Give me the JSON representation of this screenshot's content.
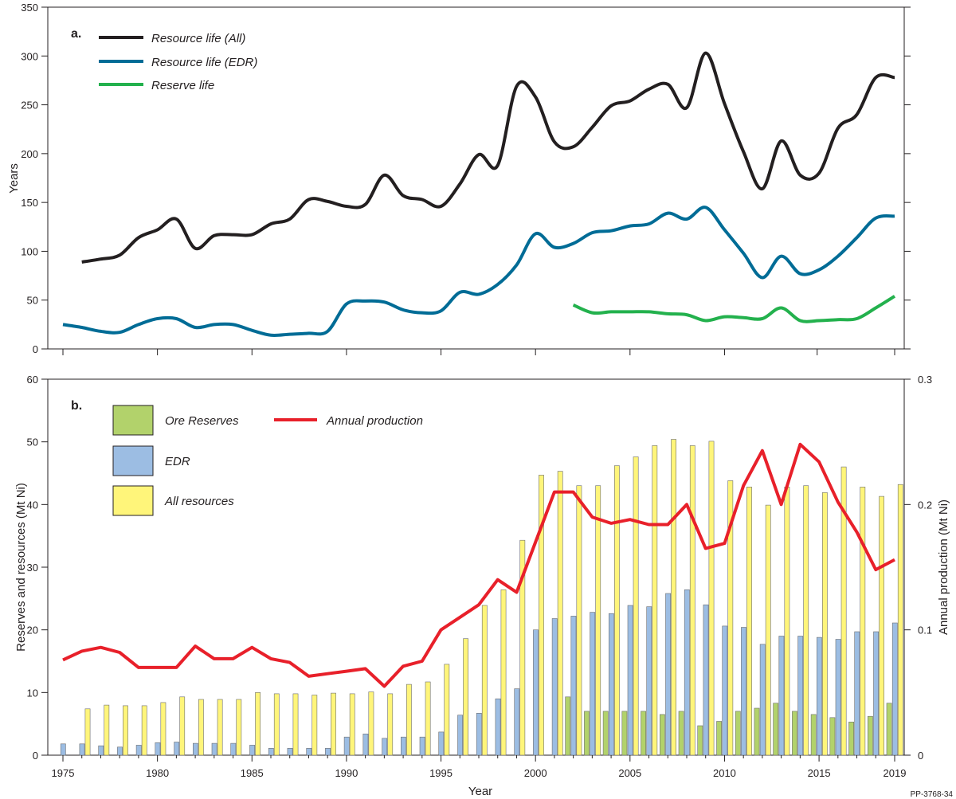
{
  "chart_data": [
    {
      "panel": "a.",
      "type": "line",
      "x": [
        1975,
        1976,
        1977,
        1978,
        1979,
        1980,
        1981,
        1982,
        1983,
        1984,
        1985,
        1986,
        1987,
        1988,
        1989,
        1990,
        1991,
        1992,
        1993,
        1994,
        1995,
        1996,
        1997,
        1998,
        1999,
        2000,
        2001,
        2002,
        2003,
        2004,
        2005,
        2006,
        2007,
        2008,
        2009,
        2010,
        2011,
        2012,
        2013,
        2014,
        2015,
        2016,
        2017,
        2018,
        2019
      ],
      "series": [
        {
          "name": "Resource life (All)",
          "color": "#231f20",
          "values": [
            null,
            89,
            92,
            96,
            114,
            122,
            133,
            103,
            116,
            117,
            117,
            128,
            133,
            153,
            151,
            146,
            148,
            178,
            157,
            153,
            146,
            169,
            199,
            188,
            269,
            258,
            212,
            207,
            227,
            249,
            254,
            266,
            271,
            247,
            303,
            251,
            202,
            164,
            213,
            178,
            180,
            226,
            240,
            278,
            278
          ]
        },
        {
          "name": "Resource life (EDR)",
          "color": "#006c96",
          "values": [
            25,
            22,
            18,
            17,
            25,
            31,
            31,
            22,
            25,
            25,
            19,
            14,
            15,
            16,
            18,
            46,
            49,
            48,
            40,
            37,
            39,
            58,
            56,
            66,
            86,
            118,
            104,
            108,
            119,
            121,
            126,
            128,
            139,
            133,
            145,
            122,
            98,
            73,
            95,
            77,
            81,
            95,
            114,
            134,
            136
          ]
        },
        {
          "name": "Reserve life",
          "color": "#23b14d",
          "values": [
            null,
            null,
            null,
            null,
            null,
            null,
            null,
            null,
            null,
            null,
            null,
            null,
            null,
            null,
            null,
            null,
            null,
            null,
            null,
            null,
            null,
            null,
            null,
            null,
            null,
            null,
            null,
            45,
            37,
            38,
            38,
            38,
            36,
            35,
            29,
            33,
            32,
            31,
            42,
            29,
            29,
            30,
            31,
            42,
            54
          ]
        }
      ],
      "ylabel": "Years",
      "ylim": [
        0,
        350
      ],
      "yticks": [
        0,
        50,
        100,
        150,
        200,
        250,
        300,
        350
      ],
      "legend": "top-left"
    },
    {
      "panel": "b.",
      "type": "bar",
      "categories": [
        1975,
        1976,
        1977,
        1978,
        1979,
        1980,
        1981,
        1982,
        1983,
        1984,
        1985,
        1986,
        1987,
        1988,
        1989,
        1990,
        1991,
        1992,
        1993,
        1994,
        1995,
        1996,
        1997,
        1998,
        1999,
        2000,
        2001,
        2002,
        2003,
        2004,
        2005,
        2006,
        2007,
        2008,
        2009,
        2010,
        2011,
        2012,
        2013,
        2014,
        2015,
        2016,
        2017,
        2018,
        2019
      ],
      "series": [
        {
          "name": "Ore Reserves",
          "color": "#b2d26b",
          "values": [
            null,
            null,
            null,
            null,
            null,
            null,
            null,
            null,
            null,
            null,
            null,
            null,
            null,
            null,
            null,
            null,
            null,
            null,
            null,
            null,
            null,
            null,
            null,
            null,
            null,
            null,
            null,
            9.3,
            7,
            7,
            7,
            7,
            6.5,
            7,
            4.7,
            5.4,
            7,
            7.5,
            8.3,
            7,
            6.5,
            6,
            5.3,
            6.2,
            8.3
          ]
        },
        {
          "name": "EDR",
          "color": "#9cbde3",
          "values": [
            1.8,
            1.8,
            1.5,
            1.3,
            1.6,
            2,
            2.1,
            1.9,
            1.9,
            1.9,
            1.6,
            1.1,
            1.1,
            1.1,
            1.1,
            2.9,
            3.4,
            2.7,
            2.9,
            2.9,
            3.7,
            6.4,
            6.7,
            9,
            10.6,
            20,
            21.8,
            22.2,
            22.8,
            22.6,
            23.9,
            23.7,
            25.8,
            26.4,
            24,
            20.6,
            20.4,
            17.7,
            19,
            19,
            18.8,
            18.5,
            19.7,
            19.7,
            21.1
          ]
        },
        {
          "name": "All resources",
          "color": "#fff57a",
          "values": [
            null,
            7.4,
            8,
            7.9,
            7.9,
            8.4,
            9.3,
            8.9,
            8.9,
            8.9,
            10,
            9.8,
            9.8,
            9.6,
            9.9,
            9.8,
            10.1,
            9.8,
            11.3,
            11.7,
            14.5,
            18.6,
            23.9,
            26.4,
            34.3,
            44.7,
            45.3,
            43,
            43,
            46.2,
            47.6,
            49.4,
            50.4,
            49.4,
            50.1,
            43.8,
            42.8,
            39.9,
            42.8,
            43,
            41.9,
            46,
            42.8,
            41.3,
            43.2
          ]
        }
      ],
      "line_series": {
        "name": "Annual production",
        "color": "#e8202a",
        "values": [
          0.076,
          0.083,
          0.086,
          0.082,
          0.07,
          0.07,
          0.07,
          0.087,
          0.077,
          0.077,
          0.086,
          0.077,
          0.074,
          0.063,
          0.065,
          0.067,
          0.069,
          0.055,
          0.071,
          0.075,
          0.1,
          0.11,
          0.12,
          0.14,
          0.13,
          0.17,
          0.21,
          0.21,
          0.19,
          0.185,
          0.188,
          0.184,
          0.184,
          0.2,
          0.165,
          0.169,
          0.215,
          0.243,
          0.2,
          0.248,
          0.234,
          0.202,
          0.178,
          0.148,
          0.156
        ]
      },
      "ylabel": "Reserves and resources (Mt Ni)",
      "y2label": "Annual production (Mt Ni)",
      "ylim": [
        0,
        60
      ],
      "y2lim": [
        0,
        0.3
      ],
      "yticks": [
        0,
        10,
        20,
        30,
        40,
        50,
        60
      ],
      "y2ticks": [
        "0",
        "0.1",
        "0.2",
        "0.3"
      ],
      "xlabel": "Year",
      "xticks": [
        1975,
        1980,
        1985,
        1990,
        1995,
        2000,
        2005,
        2010,
        2015,
        2019
      ],
      "legend": "top-left"
    }
  ],
  "legend_a": [
    "Resource life (All)",
    "Resource life (EDR)",
    "Reserve life"
  ],
  "legend_b": [
    "Ore Reserves",
    "EDR",
    "All resources",
    "Annual production"
  ],
  "figure_code": "PP-3768-34"
}
